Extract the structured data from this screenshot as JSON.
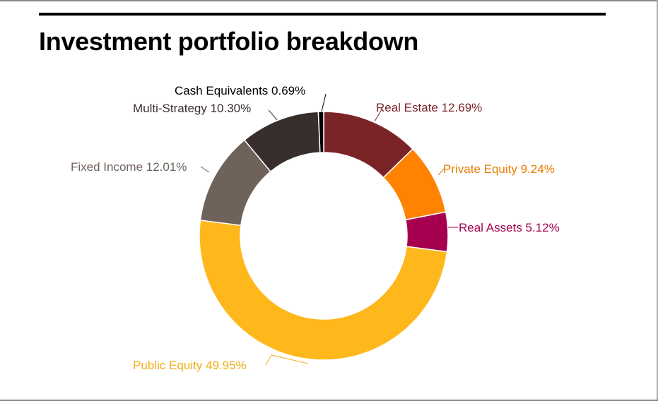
{
  "title": "Investment portfolio breakdown",
  "chart_data": {
    "type": "pie",
    "donut": true,
    "title": "Investment portfolio breakdown",
    "legend": "none (labels placed next to slices)",
    "slices": [
      {
        "name": "Real Estate",
        "value": 12.69,
        "label": "Real Estate 12.69%",
        "color": "#7b2428",
        "label_color": "#7b2428"
      },
      {
        "name": "Private Equity",
        "value": 9.24,
        "label": "Private Equity 9.24%",
        "color": "#ff8200",
        "label_color": "#ea7b00"
      },
      {
        "name": "Real Assets",
        "value": 5.12,
        "label": "Real Assets 5.12%",
        "color": "#a50050",
        "label_color": "#a50050"
      },
      {
        "name": "Public Equity",
        "value": 49.95,
        "label": "Public Equity 49.95%",
        "color": "#ffb81c",
        "label_color": "#f2ad17"
      },
      {
        "name": "Fixed Income",
        "value": 12.01,
        "label": "Fixed Income 12.01%",
        "color": "#6e625a",
        "label_color": "#6e625a"
      },
      {
        "name": "Multi-Strategy",
        "value": 10.3,
        "label": "Multi-Strategy 10.30%",
        "color": "#382f2d",
        "label_color": "#382f2d"
      },
      {
        "name": "Cash Equivalents",
        "value": 0.69,
        "label": "Cash Equivalents 0.69%",
        "color": "#000000",
        "label_color": "#000000"
      }
    ]
  }
}
